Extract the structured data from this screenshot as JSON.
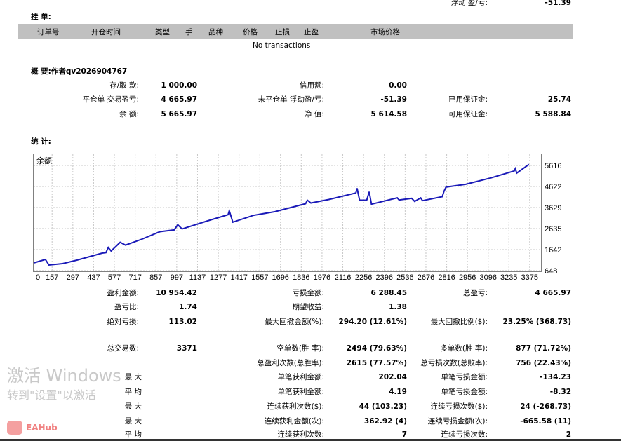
{
  "top": {
    "floating_label": "浮动 盈/亏:",
    "floating_value": "-51.39"
  },
  "pending": {
    "title": "挂 单:",
    "columns": [
      "订单号",
      "开仓时间",
      "类型",
      "手",
      "品种",
      "价格",
      "止损",
      "止盈",
      "市场价格"
    ],
    "empty_text": "No transactions"
  },
  "summary": {
    "title": "概 要:作者qv2026904767",
    "rows": [
      [
        {
          "label": "存/取 款:",
          "value": "1 000.00"
        },
        {
          "label": "信用额:",
          "value": "0.00"
        },
        {
          "label": "",
          "value": ""
        }
      ],
      [
        {
          "label": "平仓单 交易盈亏:",
          "value": "4 665.97"
        },
        {
          "label": "未平仓单 浮动盈/亏:",
          "value": "-51.39"
        },
        {
          "label": "已用保证金:",
          "value": "25.74"
        }
      ],
      [
        {
          "label": "余 额:",
          "value": "5 665.97"
        },
        {
          "label": "净 值:",
          "value": "5 614.58"
        },
        {
          "label": "可用保证金:",
          "value": "5 588.84"
        }
      ]
    ]
  },
  "stats": {
    "title": "统 计:",
    "rows": [
      [
        {
          "label": "盈利金额:",
          "value": "10 954.42"
        },
        {
          "label": "亏损金额:",
          "value": "6 288.45"
        },
        {
          "label": "总盈亏:",
          "value": "4 665.97"
        }
      ],
      [
        {
          "label": "盈亏比:",
          "value": "1.74"
        },
        {
          "label": "期望收益:",
          "value": "1.38"
        },
        {
          "label": "",
          "value": ""
        }
      ],
      [
        {
          "label": "绝对亏损:",
          "value": "113.02"
        },
        {
          "label": "最大回撤金额(%):",
          "value": "294.20 (12.61%)"
        },
        {
          "label": "最大回撤比例($):",
          "value": "23.25% (368.73)"
        }
      ],
      [
        {
          "label": "总交易数:",
          "value": "3371"
        },
        {
          "label": "空单数(胜 率):",
          "value": "2494 (79.63%)"
        },
        {
          "label": "多单数(胜 率):",
          "value": "877 (71.72%)"
        }
      ],
      [
        {
          "label": "",
          "value": ""
        },
        {
          "label": "总盈利次数(总胜率):",
          "value": "2615 (77.57%)"
        },
        {
          "label": "总亏损次数(总败率):",
          "value": "756 (22.43%)"
        }
      ],
      [
        {
          "label": "最 大",
          "value": ""
        },
        {
          "label": "单笔获利金额:",
          "value": "202.04"
        },
        {
          "label": "单笔亏损金额:",
          "value": "-134.23"
        }
      ],
      [
        {
          "label": "平 均",
          "value": ""
        },
        {
          "label": "单笔获利金额:",
          "value": "4.19"
        },
        {
          "label": "单笔亏损金额:",
          "value": "-8.32"
        }
      ],
      [
        {
          "label": "最 大",
          "value": ""
        },
        {
          "label": "连续获利次数($):",
          "value": "44 (103.23)"
        },
        {
          "label": "连续亏损次数($):",
          "value": "24 (-268.73)"
        }
      ],
      [
        {
          "label": "最 大",
          "value": ""
        },
        {
          "label": "连续获利金额(次):",
          "value": "362.92 (4)"
        },
        {
          "label": "连续亏损金额(次):",
          "value": "-665.58 (11)"
        }
      ],
      [
        {
          "label": "平 均",
          "value": ""
        },
        {
          "label": "连续获利次数:",
          "value": "7"
        },
        {
          "label": "连续亏损次数:",
          "value": "2"
        }
      ]
    ]
  },
  "chart_data": {
    "type": "line",
    "title": "余额",
    "series_color": "#1a1ab8",
    "grid": true,
    "x_ticks": [
      0,
      157,
      297,
      437,
      577,
      717,
      857,
      997,
      1137,
      1277,
      1417,
      1557,
      1696,
      1836,
      1976,
      2116,
      2256,
      2396,
      2536,
      2676,
      2816,
      2956,
      3096,
      3235,
      3375
    ],
    "y_ticks": [
      648,
      1642,
      2635,
      3629,
      4622,
      5616
    ],
    "xlim": [
      0,
      3400
    ],
    "ylim": [
      648,
      6180
    ],
    "x": [
      0,
      112,
      136,
      228,
      325,
      495,
      520,
      536,
      555,
      616,
      652,
      761,
      883,
      980,
      1004,
      1033,
      1222,
      1343,
      1351,
      1375,
      1513,
      1659,
      1865,
      1877,
      1901,
      2022,
      2204,
      2212,
      2229,
      2277,
      2294,
      2309,
      2483,
      2495,
      2580,
      2600,
      2641,
      2653,
      2786,
      2798,
      2811,
      2944,
      3113,
      3271,
      3278,
      3288,
      3371
    ],
    "y": [
      1012,
      1178,
      913,
      980,
      1145,
      1476,
      1500,
      1741,
      1576,
      1985,
      1853,
      2130,
      2485,
      2573,
      2816,
      2617,
      3037,
      3290,
      3479,
      2937,
      3258,
      3435,
      3810,
      3976,
      3843,
      4010,
      4318,
      4539,
      3976,
      3976,
      4373,
      3788,
      4087,
      3987,
      4065,
      3920,
      4087,
      3954,
      4141,
      4396,
      4594,
      4727,
      5025,
      5356,
      5467,
      5256,
      5666
    ]
  },
  "watermark": {
    "line1": "激活 Windows",
    "line2": "转到\"设置\"以激活",
    "logo": "EAHub"
  }
}
